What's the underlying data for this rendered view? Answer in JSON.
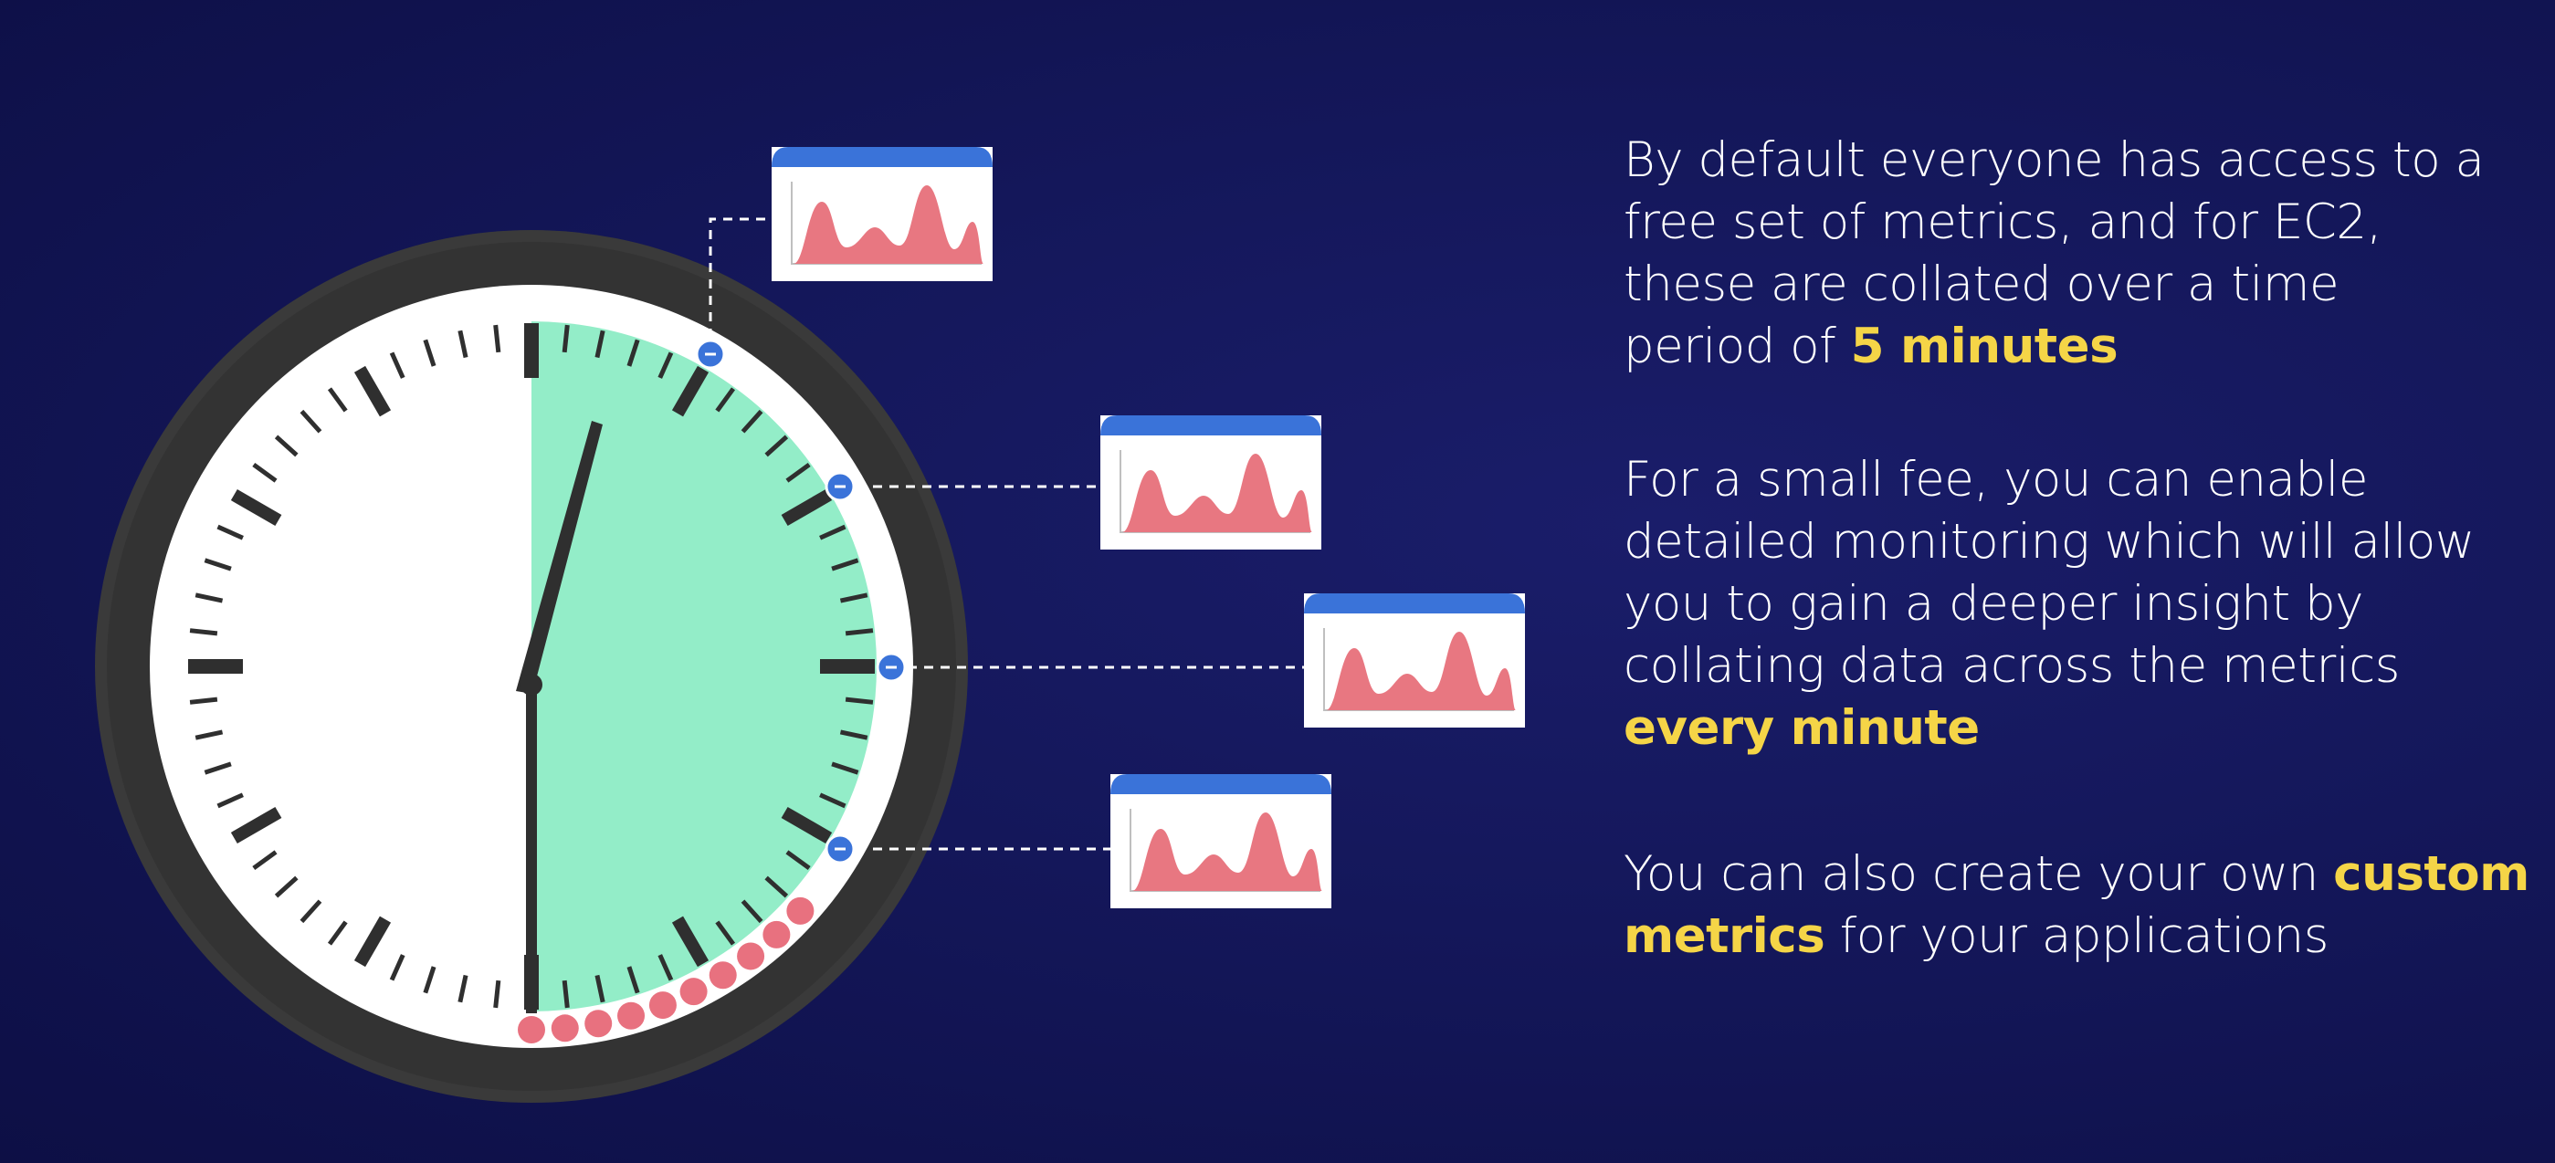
{
  "paragraphs": [
    {
      "lines": [
        "By default  everyone has access to a",
        "free set of metrics, and for EC2,",
        "these are collated over a time",
        "period of "
      ],
      "highlight": "5 minutes"
    },
    {
      "lines": [
        "For a small fee, you can enable",
        "detailed monitoring which will allow",
        "you to gain a deeper insight by",
        "collating data across the metrics"
      ],
      "highlight": "every minute"
    },
    {
      "line1_prefix": "You can also create your own ",
      "highlight_part1": "custom",
      "highlight_part2": "metrics",
      "line2_suffix": " for your applications"
    }
  ],
  "colors": {
    "background": "#14175a",
    "highlight": "#f5d547",
    "clock_rim": "#3a3a3a",
    "clock_face": "#ffffff",
    "elapsed_sector": "#93edc8",
    "marker_dot": "#3a73d9",
    "tick_dot": "#e8717f",
    "card_header": "#3a73d9",
    "sparkline": "#e87781"
  },
  "icons": {
    "clock": "clock-icon",
    "metric_card": "metric-chart-icon"
  },
  "clock": {
    "highlighted_fraction": 0.5,
    "minute_dot_count": 9,
    "metric_card_count": 4
  }
}
